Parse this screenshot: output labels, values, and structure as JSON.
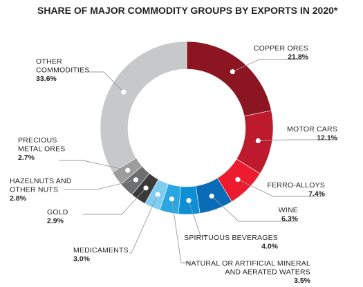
{
  "chart_data": {
    "type": "pie",
    "style": "donut",
    "title": "SHARE OF MAJOR COMMODITY GROUPS BY EXPORTS IN 2020*",
    "unit": "%",
    "legend": "none",
    "slices": [
      {
        "label": [
          "COPPER ORES"
        ],
        "value": 21.8,
        "value_label": "21.8%",
        "color": "#8c1522"
      },
      {
        "label": [
          "MOTOR CARS"
        ],
        "value": 12.1,
        "value_label": "12.1%",
        "color": "#bd1a2d"
      },
      {
        "label": [
          "FERRO-ALLOYS"
        ],
        "value": 7.4,
        "value_label": "7.4%",
        "color": "#ec1c2e"
      },
      {
        "label": [
          "WINE"
        ],
        "value": 6.3,
        "value_label": "6.3%",
        "color": "#0a6cb6"
      },
      {
        "label": [
          "SPIRITUOUS BEVERAGES"
        ],
        "value": 4.0,
        "value_label": "4.0%",
        "color": "#0e8fd3"
      },
      {
        "label": [
          "NATURAL OR ARTIFICIAL MINERAL",
          "AND AERATED WATERS"
        ],
        "value": 3.5,
        "value_label": "3.5%",
        "color": "#2aa7e0"
      },
      {
        "label": [
          "MEDICAMENTS"
        ],
        "value": 3.0,
        "value_label": "3.0%",
        "color": "#7fcdf2"
      },
      {
        "label": [
          "GOLD"
        ],
        "value": 2.9,
        "value_label": "2.9%",
        "color": "#3a3a3a"
      },
      {
        "label": [
          "HAZELNUTS AND",
          "OTHER NUTS"
        ],
        "value": 2.8,
        "value_label": "2.8%",
        "color": "#6d6e70"
      },
      {
        "label": [
          "PRECIOUS",
          "METAL ORES"
        ],
        "value": 2.7,
        "value_label": "2.7%",
        "color": "#9c9c9c"
      },
      {
        "label": [
          "OTHER",
          "COMMODITIES"
        ],
        "value": 33.6,
        "value_label": "33.6%",
        "color": "#c7c8ca"
      }
    ]
  }
}
